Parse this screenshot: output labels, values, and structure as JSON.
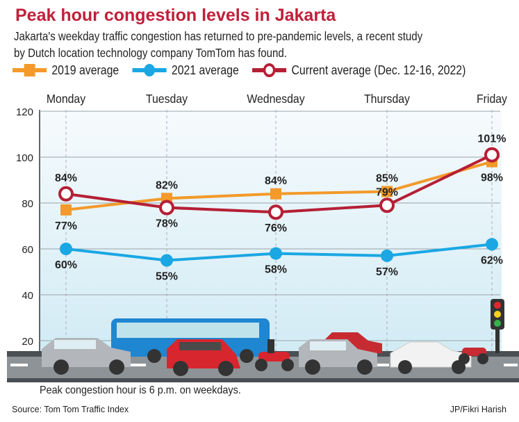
{
  "title": "Peak hour congestion levels in Jakarta",
  "subtitle": [
    "Jakarta's weekday traffic congestion has returned to pre-pandemic levels, a recent study",
    "by Dutch location technology company TomTom has found."
  ],
  "note": "Peak congestion hour is 6 p.m. on weekdays.",
  "source": "Source: Tom Tom Traffic Index",
  "credit": "JP/Fikri Harish",
  "chart_data": {
    "type": "line",
    "categories": [
      "Monday",
      "Tuesday",
      "Wednesday",
      "Thursday",
      "Friday"
    ],
    "ylim": [
      0,
      120
    ],
    "yticks": [
      0,
      20,
      40,
      60,
      80,
      100,
      120
    ],
    "grid": true,
    "legend_placement": "top",
    "series": [
      {
        "name": "2019 average",
        "color": "#f39a2a",
        "marker": "square",
        "values": [
          77,
          82,
          84,
          85,
          98
        ],
        "labels": [
          "77%",
          "82%",
          "84%",
          "85%",
          "98%"
        ]
      },
      {
        "name": "2021 average",
        "color": "#1aa7e3",
        "marker": "circle",
        "values": [
          60,
          55,
          58,
          57,
          62
        ],
        "labels": [
          "60%",
          "55%",
          "58%",
          "57%",
          "62%"
        ]
      },
      {
        "name": "Current average (Dec. 12-16, 2022)",
        "color": "#b51f35",
        "marker": "open-circle",
        "values": [
          84,
          78,
          76,
          79,
          101
        ],
        "labels": [
          "84%",
          "78%",
          "76%",
          "79%",
          "101%"
        ]
      }
    ]
  }
}
